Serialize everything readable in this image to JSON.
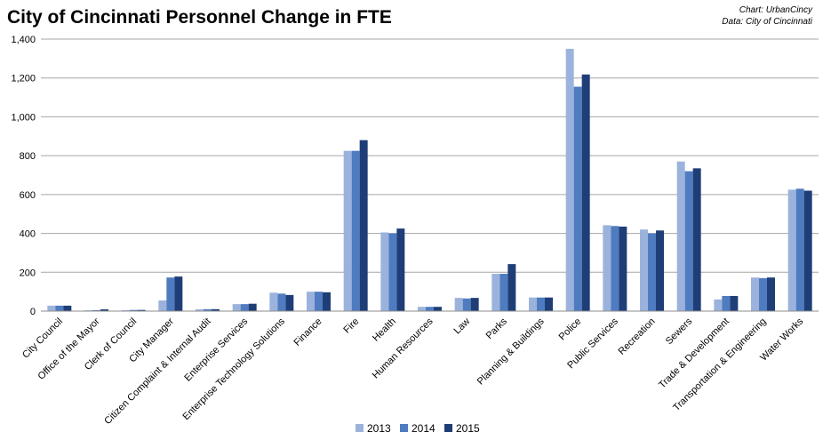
{
  "colors": {
    "series_2013": "#9bb3dc",
    "series_2014": "#4f7cc0",
    "series_2015": "#1f3e78",
    "grid": "#a6a6a6",
    "text": "#000000"
  },
  "chart_data": {
    "type": "bar",
    "title": "City of Cincinnati Personnel Change in FTE",
    "credits": [
      "Chart: UrbanCincy",
      "Data: City of Cincinnati"
    ],
    "xlabel": "",
    "ylabel": "",
    "ylim": [
      0,
      1400
    ],
    "yticks": [
      0,
      200,
      400,
      600,
      800,
      1000,
      1200,
      1400
    ],
    "ytick_labels": [
      "0",
      "200",
      "400",
      "600",
      "800",
      "1,000",
      "1,200",
      "1,400"
    ],
    "grid": true,
    "legend_position": "bottom",
    "categories": [
      "City Council",
      "Office of the Mayor",
      "Clerk of Council",
      "City Manager",
      "Citizen Complaint & Internal Audit",
      "Enterprise Services",
      "Enterprise Technology Solutions",
      "Finance",
      "Fire",
      "Health",
      "Human Resources",
      "Law",
      "Parks",
      "Planning & Buildings",
      "Police",
      "Public Services",
      "Recreation",
      "Sewers",
      "Trade & Development",
      "Transportation & Engineering",
      "Water Works"
    ],
    "series": [
      {
        "name": "2013",
        "values": [
          28,
          4,
          5,
          55,
          9,
          36,
          95,
          100,
          825,
          405,
          22,
          68,
          192,
          70,
          1350,
          442,
          420,
          770,
          60,
          173,
          625
        ]
      },
      {
        "name": "2014",
        "values": [
          28,
          5,
          6,
          173,
          10,
          36,
          90,
          100,
          825,
          400,
          22,
          65,
          192,
          70,
          1155,
          438,
          400,
          720,
          78,
          170,
          630
        ]
      },
      {
        "name": "2015",
        "values": [
          28,
          9,
          6,
          178,
          10,
          38,
          83,
          97,
          880,
          425,
          22,
          68,
          242,
          70,
          1218,
          435,
          415,
          735,
          78,
          173,
          620
        ]
      }
    ]
  }
}
